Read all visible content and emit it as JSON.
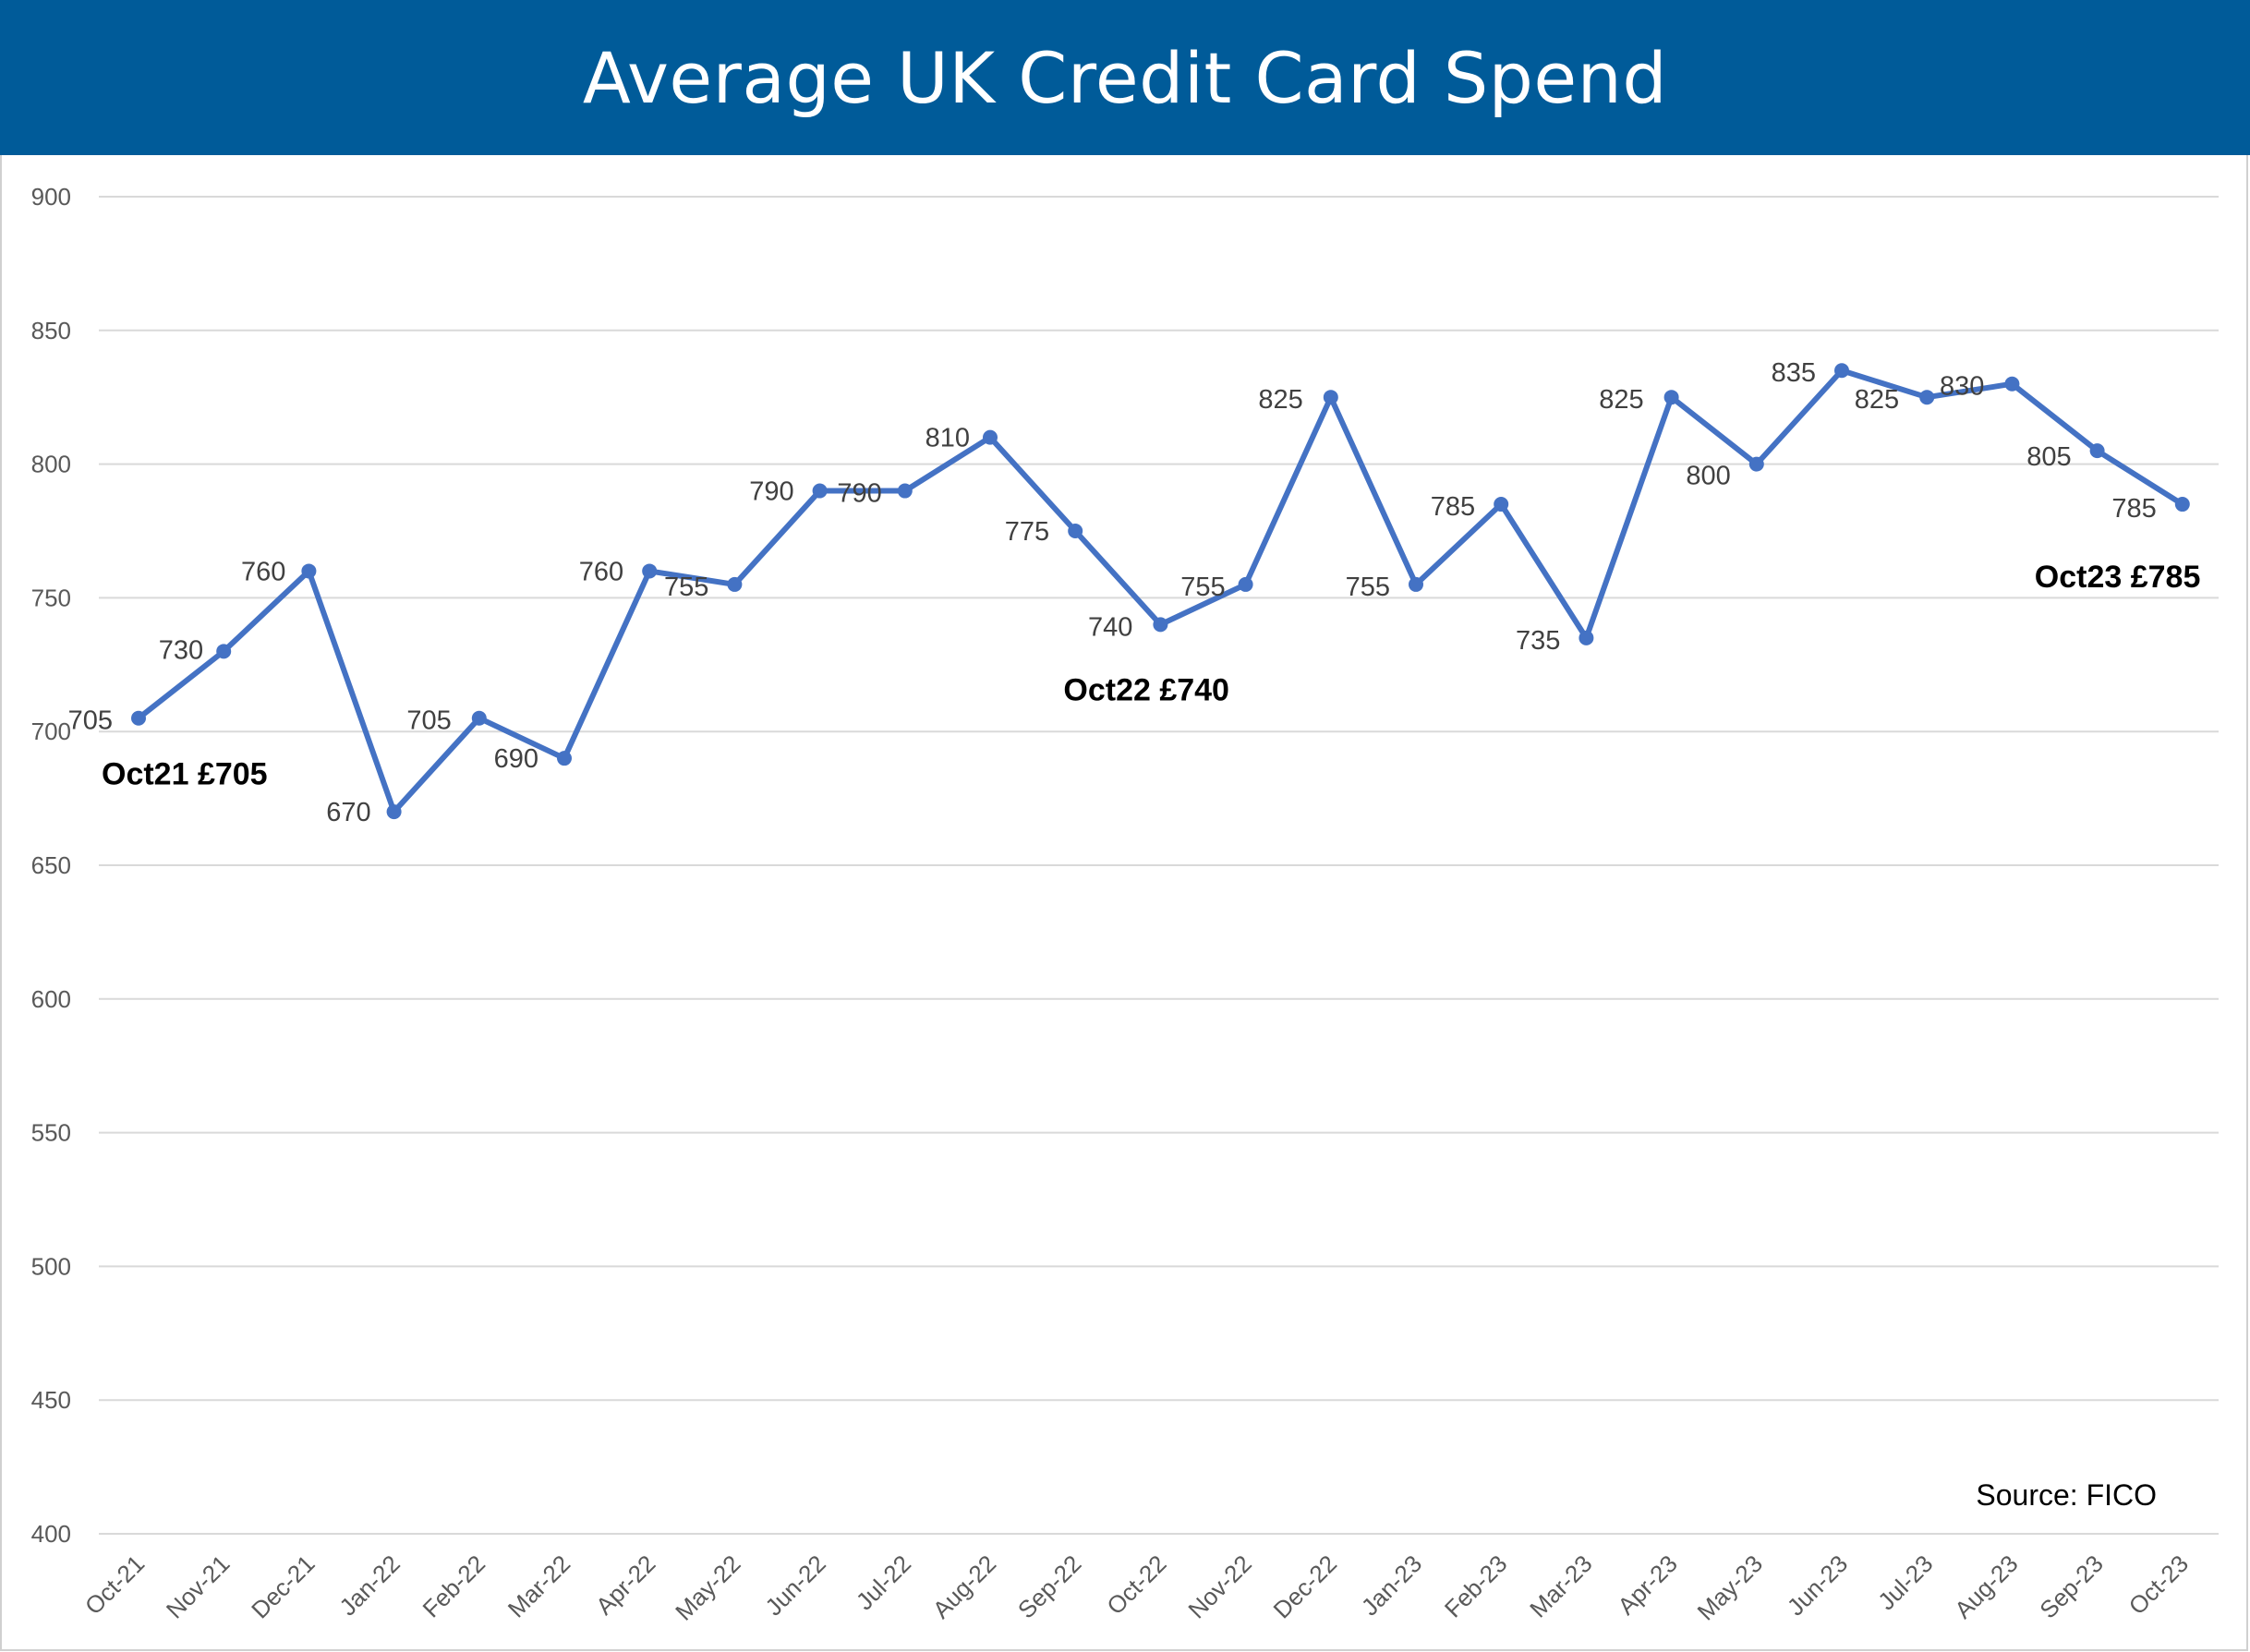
{
  "header": {
    "title": "Average UK Credit Card Spend"
  },
  "colors": {
    "header_bg": "#005b99",
    "series_line": "#4472c4",
    "gridline": "#d9d9d9"
  },
  "chart_data": {
    "type": "line",
    "title": "Average UK Credit Card Spend",
    "categories": [
      "Oct-21",
      "Nov-21",
      "Dec-21",
      "Jan-22",
      "Feb-22",
      "Mar-22",
      "Apr-22",
      "May-22",
      "Jun-22",
      "Jul-22",
      "Aug-22",
      "Sep-22",
      "Oct-22",
      "Nov-22",
      "Dec-22",
      "Jan-23",
      "Feb-23",
      "Mar-23",
      "Apr-23",
      "May-23",
      "Jun-23",
      "Jul-23",
      "Aug-23",
      "Sep-23",
      "Oct-23"
    ],
    "series": [
      {
        "values": [
          705,
          730,
          760,
          670,
          705,
          690,
          760,
          755,
          790,
          790,
          810,
          775,
          740,
          755,
          825,
          755,
          785,
          735,
          825,
          800,
          835,
          825,
          830,
          805,
          785
        ]
      }
    ],
    "y_ticks": [
      "400",
      "450",
      "500",
      "550",
      "600",
      "650",
      "700",
      "750",
      "800",
      "850",
      "900"
    ],
    "ylim": [
      400,
      900
    ],
    "grid": true,
    "legend": "none",
    "data_labels": true,
    "annotations": [
      {
        "text": "Oct21 £705",
        "x": "Oct-21"
      },
      {
        "text": "Oct22 £740",
        "x": "Oct-22"
      },
      {
        "text": "Oct23 £785",
        "x": "Oct-23"
      }
    ],
    "source": "Source: FICO"
  }
}
